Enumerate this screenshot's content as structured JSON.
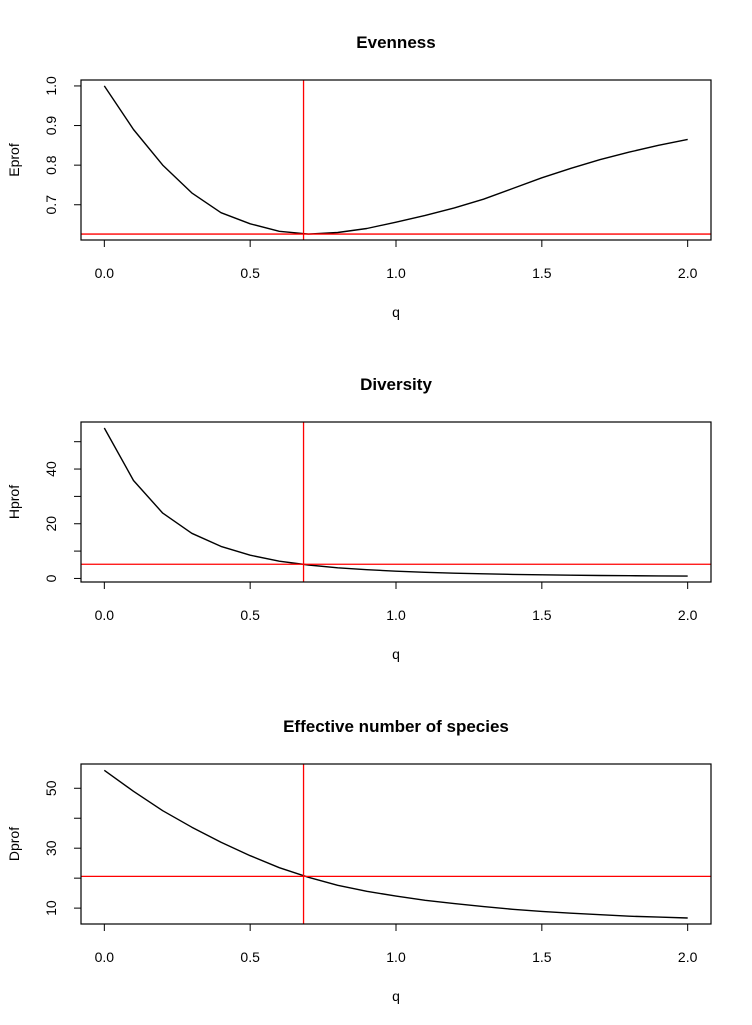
{
  "chart_data": [
    {
      "type": "line",
      "title": "Evenness",
      "xlabel": "q",
      "ylabel": "Eprof",
      "xlim": [
        -0.08,
        2.08
      ],
      "ylim": [
        0.611,
        1.015
      ],
      "xticks": [
        "0.0",
        "0.5",
        "1.0",
        "1.5",
        "2.0"
      ],
      "xtick_values": [
        0,
        0.5,
        1,
        1.5,
        2
      ],
      "yticks": [
        "0.7",
        "0.8",
        "0.9",
        "1.0"
      ],
      "ytick_values": [
        0.7,
        0.8,
        0.9,
        1.0
      ],
      "x": [
        0,
        0.1,
        0.2,
        0.3,
        0.4,
        0.5,
        0.6,
        0.7,
        0.8,
        0.9,
        1.0,
        1.1,
        1.2,
        1.3,
        1.4,
        1.5,
        1.6,
        1.7,
        1.8,
        1.9,
        2.0
      ],
      "values": [
        1.0,
        0.89,
        0.8,
        0.73,
        0.68,
        0.652,
        0.633,
        0.626,
        0.63,
        0.64,
        0.656,
        0.673,
        0.692,
        0.714,
        0.741,
        0.768,
        0.792,
        0.814,
        0.833,
        0.85,
        0.865
      ],
      "vline": 0.683,
      "hline": 0.626,
      "line_color": "#000000",
      "ref_color": "#ff0000",
      "grid": false
    },
    {
      "type": "line",
      "title": "Diversity",
      "xlabel": "q",
      "ylabel": "Hprof",
      "xlim": [
        -0.08,
        2.08
      ],
      "ylim": [
        -1.3,
        57.2
      ],
      "xticks": [
        "0.0",
        "0.5",
        "1.0",
        "1.5",
        "2.0"
      ],
      "xtick_values": [
        0,
        0.5,
        1,
        1.5,
        2
      ],
      "yticks": [
        "0",
        "",
        "20",
        "",
        "40",
        ""
      ],
      "ytick_values": [
        0,
        10,
        20,
        30,
        40,
        50
      ],
      "x": [
        0,
        0.1,
        0.2,
        0.3,
        0.4,
        0.5,
        0.6,
        0.7,
        0.8,
        0.9,
        1.0,
        1.1,
        1.2,
        1.3,
        1.4,
        1.5,
        1.6,
        1.7,
        1.8,
        1.9,
        2.0
      ],
      "values": [
        55,
        35.8,
        23.9,
        16.5,
        11.7,
        8.5,
        6.3,
        4.9,
        3.9,
        3.2,
        2.64,
        2.24,
        1.93,
        1.69,
        1.49,
        1.33,
        1.2,
        1.09,
        1.0,
        0.92,
        0.85
      ],
      "vline": 0.683,
      "hline": 5.2,
      "line_color": "#000000",
      "ref_color": "#ff0000",
      "grid": false
    },
    {
      "type": "line",
      "title": "Effective number of species",
      "xlabel": "q",
      "ylabel": "Dprof",
      "xlim": [
        -0.08,
        2.08
      ],
      "ylim": [
        4.7,
        58.1
      ],
      "xticks": [
        "0.0",
        "0.5",
        "1.0",
        "1.5",
        "2.0"
      ],
      "xtick_values": [
        0,
        0.5,
        1,
        1.5,
        2
      ],
      "yticks": [
        "10",
        "",
        "30",
        "",
        "50"
      ],
      "ytick_values": [
        10,
        20,
        30,
        40,
        50
      ],
      "x": [
        0,
        0.1,
        0.2,
        0.3,
        0.4,
        0.5,
        0.6,
        0.7,
        0.8,
        0.9,
        1.0,
        1.1,
        1.2,
        1.3,
        1.4,
        1.5,
        1.6,
        1.7,
        1.8,
        1.9,
        2.0
      ],
      "values": [
        56,
        49,
        42.5,
        37,
        32,
        27.5,
        23.5,
        20.3,
        17.6,
        15.6,
        14.0,
        12.6,
        11.5,
        10.5,
        9.6,
        8.9,
        8.3,
        7.8,
        7.3,
        7.0,
        6.7
      ],
      "vline": 0.683,
      "hline": 20.6,
      "line_color": "#000000",
      "ref_color": "#ff0000",
      "grid": false
    }
  ]
}
